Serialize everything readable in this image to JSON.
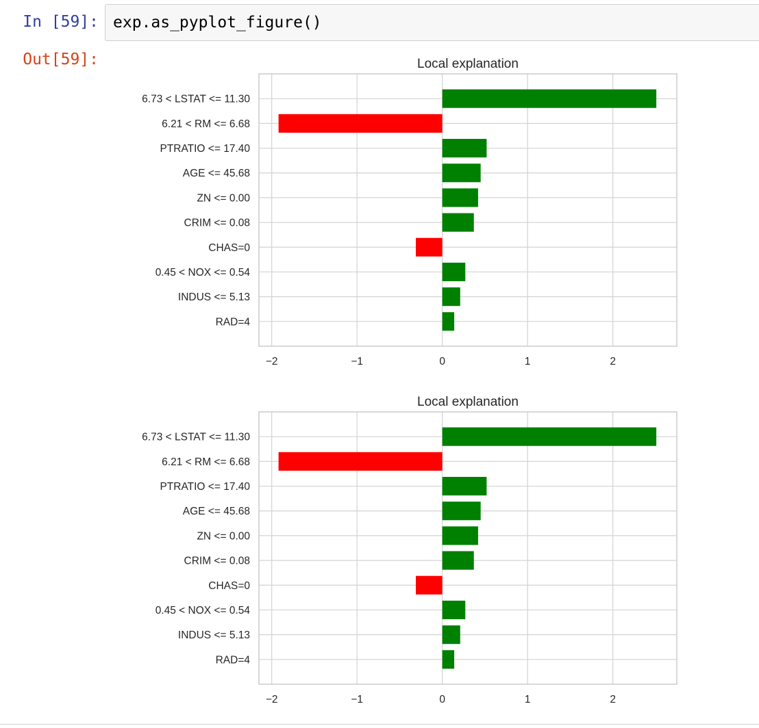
{
  "cell": {
    "in_prompt": "In [59]:",
    "out_prompt": "Out[59]:",
    "code": "exp.as_pyplot_figure()"
  },
  "chart_data": [
    {
      "type": "bar",
      "orientation": "horizontal",
      "title": "Local explanation",
      "categories": [
        "6.73 < LSTAT <= 11.30",
        "6.21 < RM <= 6.68",
        "PTRATIO <= 17.40",
        "AGE <= 45.68",
        "ZN <= 0.00",
        "CRIM <= 0.08",
        "CHAS=0",
        "0.45 < NOX <= 0.54",
        "INDUS <= 5.13",
        "RAD=4"
      ],
      "values": [
        2.51,
        -1.92,
        0.52,
        0.45,
        0.42,
        0.37,
        -0.31,
        0.27,
        0.21,
        0.14
      ],
      "xticks": [
        -2,
        -1,
        0,
        1,
        2
      ],
      "xtick_labels": [
        "−2",
        "−1",
        "0",
        "1",
        "2"
      ],
      "xlim": [
        -2.15,
        2.75
      ],
      "colors": {
        "positive": "#008000",
        "negative": "#ff0000"
      },
      "grid": true
    },
    {
      "type": "bar",
      "orientation": "horizontal",
      "title": "Local explanation",
      "categories": [
        "6.73 < LSTAT <= 11.30",
        "6.21 < RM <= 6.68",
        "PTRATIO <= 17.40",
        "AGE <= 45.68",
        "ZN <= 0.00",
        "CRIM <= 0.08",
        "CHAS=0",
        "0.45 < NOX <= 0.54",
        "INDUS <= 5.13",
        "RAD=4"
      ],
      "values": [
        2.51,
        -1.92,
        0.52,
        0.45,
        0.42,
        0.37,
        -0.31,
        0.27,
        0.21,
        0.14
      ],
      "xticks": [
        -2,
        -1,
        0,
        1,
        2
      ],
      "xtick_labels": [
        "−2",
        "−1",
        "0",
        "1",
        "2"
      ],
      "xlim": [
        -2.15,
        2.75
      ],
      "colors": {
        "positive": "#008000",
        "negative": "#ff0000"
      },
      "grid": true
    }
  ]
}
